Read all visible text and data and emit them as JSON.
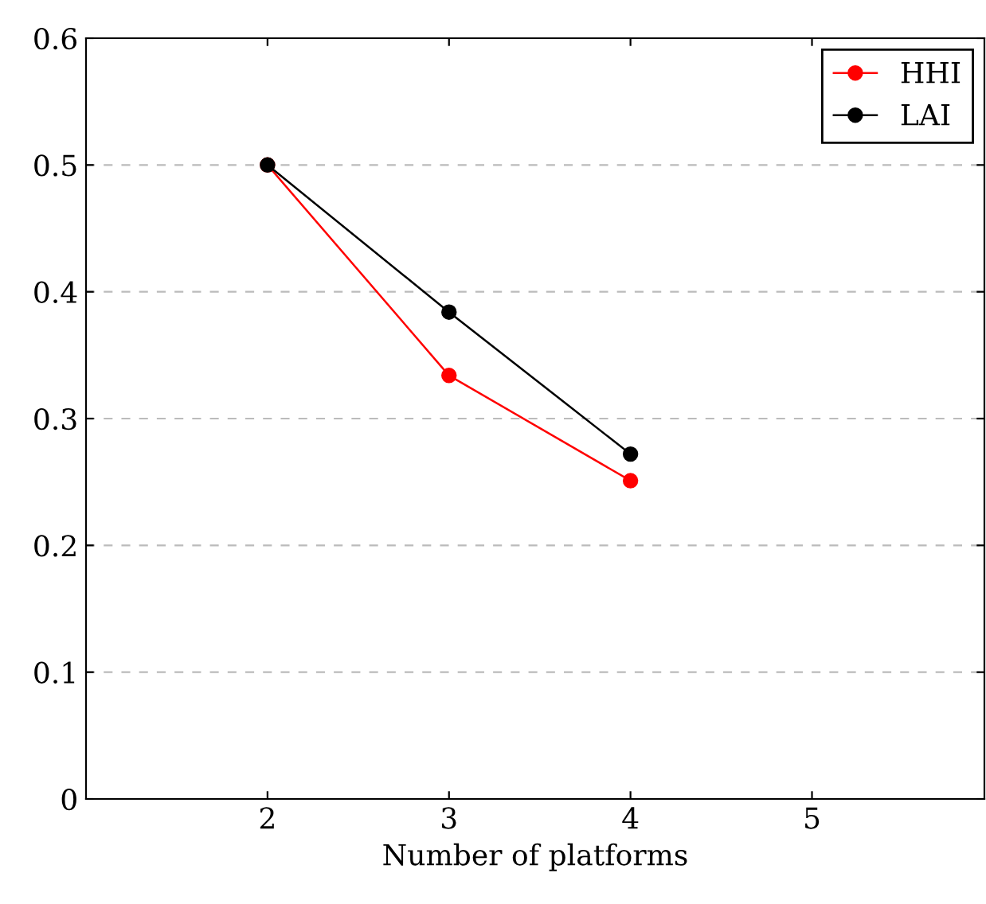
{
  "chart_data": {
    "type": "line",
    "xlabel": "Number of platforms",
    "x": [
      2,
      3,
      4
    ],
    "series": [
      {
        "name": "HHI",
        "color": "#ff0000",
        "values": [
          0.5,
          0.334,
          0.251
        ]
      },
      {
        "name": "LAI",
        "color": "#000000",
        "values": [
          0.5,
          0.384,
          0.272
        ]
      }
    ],
    "xlim": [
      1,
      5.95
    ],
    "xticks": [
      2,
      3,
      4,
      5
    ],
    "ylim": [
      0,
      0.6
    ],
    "yticks": [
      {
        "value": 0,
        "label": "0"
      },
      0.1,
      0.2,
      0.3,
      0.4,
      0.5,
      0.6
    ],
    "grid": "y",
    "legend": "top right",
    "marker": "circle",
    "line_style": "solid"
  }
}
